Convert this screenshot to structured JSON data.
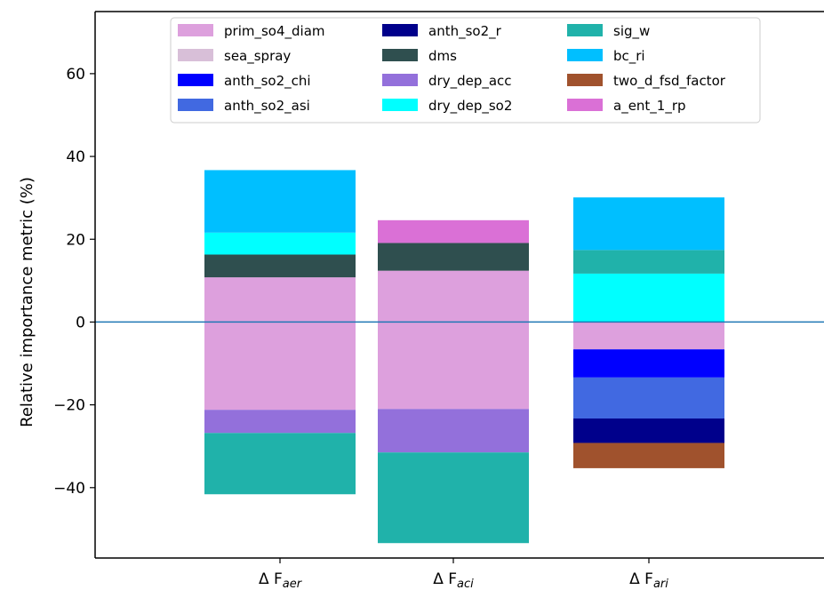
{
  "chart_data": {
    "type": "bar",
    "stacked": true,
    "ylabel": "Relative importance metric (%)",
    "ylim": [
      -57,
      75
    ],
    "yticks": [
      -40,
      -20,
      0,
      20,
      40,
      60
    ],
    "ytick_labels": [
      "−40",
      "−20",
      "0",
      "20",
      "40",
      "60"
    ],
    "grid": false,
    "legend_position": "top-center",
    "zero_line_color": "#1f77b4",
    "categories": [
      {
        "prefix": "Δ F",
        "sub": "aer"
      },
      {
        "prefix": "Δ F",
        "sub": "aci"
      },
      {
        "prefix": "Δ F",
        "sub": "ari"
      }
    ],
    "legend": [
      {
        "name": "prim_so4_diam",
        "color": "#dda0dd"
      },
      {
        "name": "sea_spray",
        "color": "#d8bfd8"
      },
      {
        "name": "anth_so2_chi",
        "color": "#0000ff"
      },
      {
        "name": "anth_so2_asi",
        "color": "#4169e1"
      },
      {
        "name": "anth_so2_r",
        "color": "#00008b"
      },
      {
        "name": "dms",
        "color": "#2f4f4f"
      },
      {
        "name": "dry_dep_acc",
        "color": "#9370db"
      },
      {
        "name": "dry_dep_so2",
        "color": "#00ffff"
      },
      {
        "name": "sig_w",
        "color": "#20b2aa"
      },
      {
        "name": "bc_ri",
        "color": "#00bfff"
      },
      {
        "name": "two_d_fsd_factor",
        "color": "#a0522d"
      },
      {
        "name": "a_ent_1_rp",
        "color": "#da70d6"
      }
    ],
    "bars": [
      {
        "segments": [
          {
            "param": "prim_so4_diam",
            "from": -21.2,
            "to": 10.8
          },
          {
            "param": "sea_spray",
            "from": 10.8,
            "to": 10.8
          },
          {
            "param": "dms",
            "from": 10.8,
            "to": 16.3
          },
          {
            "param": "dry_dep_so2",
            "from": 16.3,
            "to": 21.6
          },
          {
            "param": "bc_ri",
            "from": 21.6,
            "to": 36.7
          },
          {
            "param": "dry_dep_acc",
            "from": -26.8,
            "to": -21.2
          },
          {
            "param": "sig_w",
            "from": -41.6,
            "to": -26.8
          }
        ]
      },
      {
        "segments": [
          {
            "param": "prim_so4_diam",
            "from": -21.0,
            "to": 12.4
          },
          {
            "param": "dms",
            "from": 12.4,
            "to": 19.1
          },
          {
            "param": "a_ent_1_rp",
            "from": 19.1,
            "to": 24.6
          },
          {
            "param": "dry_dep_acc",
            "from": -31.5,
            "to": -21.0
          },
          {
            "param": "sig_w",
            "from": -53.4,
            "to": -31.5
          }
        ]
      },
      {
        "segments": [
          {
            "param": "prim_so4_diam",
            "from": -6.6,
            "to": 0
          },
          {
            "param": "dry_dep_so2",
            "from": 0,
            "to": 11.7
          },
          {
            "param": "sig_w",
            "from": 11.7,
            "to": 17.4
          },
          {
            "param": "bc_ri",
            "from": 17.4,
            "to": 30.1
          },
          {
            "param": "anth_so2_chi",
            "from": -13.4,
            "to": -6.6
          },
          {
            "param": "anth_so2_asi",
            "from": -23.3,
            "to": -13.4
          },
          {
            "param": "anth_so2_r",
            "from": -29.2,
            "to": -23.3
          },
          {
            "param": "two_d_fsd_factor",
            "from": -35.3,
            "to": -29.2
          }
        ]
      }
    ]
  }
}
